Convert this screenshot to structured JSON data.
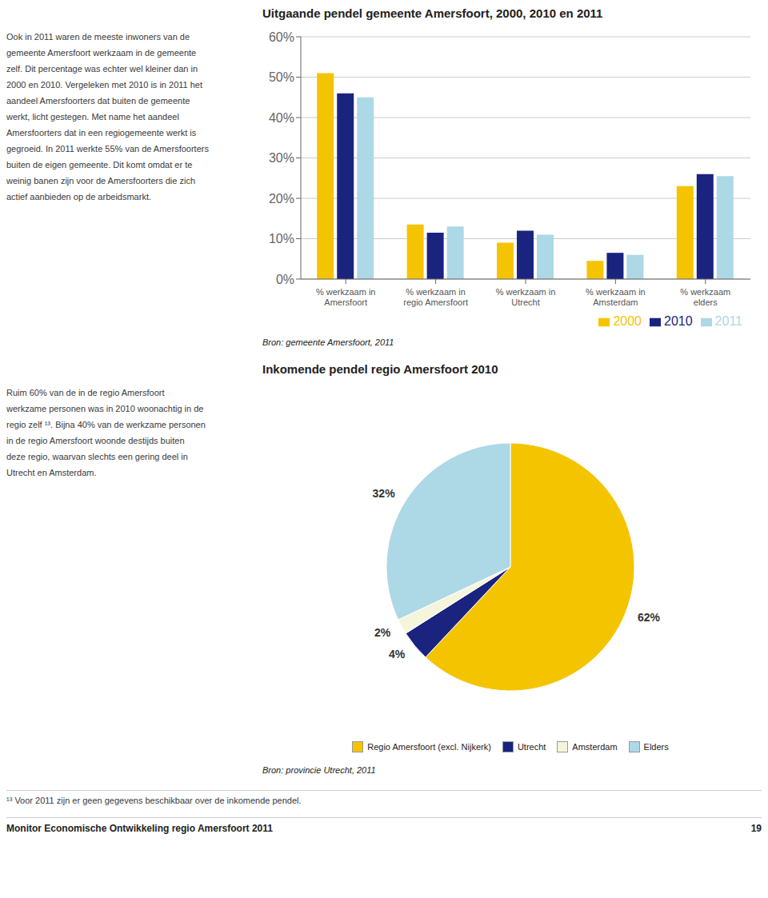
{
  "chart_data": [
    {
      "type": "bar",
      "title": "Uitgaande pendel gemeente Amersfoort, 2000, 2010 en 2011",
      "categories": [
        "% werkzaam in\nAmersfoort",
        "% werkzaam in\nregio Amersfoort",
        "% werkzaam in\nUtrecht",
        "% werkzaam in\nAmsterdam",
        "% werkzaam\nelders"
      ],
      "series": [
        {
          "name": "2000",
          "color": "#F5C400",
          "values": [
            51,
            13.5,
            9,
            4.5,
            23
          ]
        },
        {
          "name": "2010",
          "color": "#1a237e",
          "values": [
            46,
            11.5,
            12,
            6.5,
            26
          ]
        },
        {
          "name": "2011",
          "color": "#add8e6",
          "values": [
            45,
            13,
            11,
            6,
            25.5
          ]
        }
      ],
      "ylim": [
        0,
        60
      ],
      "yticks": [
        {
          "value": 0,
          "label": "0%"
        },
        {
          "value": 10,
          "label": "10%"
        },
        {
          "value": 20,
          "label": "20%"
        },
        {
          "value": 30,
          "label": "30%"
        },
        {
          "value": 40,
          "label": "40%"
        },
        {
          "value": 50,
          "label": "50%"
        },
        {
          "value": 60,
          "label": "60%"
        }
      ],
      "grid": true,
      "legend": "lower right",
      "annotations": [
        "Bron: gemeente Amersfoort, 2011"
      ]
    },
    {
      "type": "pie",
      "title": "Inkomende pendel regio Amersfoort 2010",
      "categories": [
        "Regio Amersfoort (excl. Nijkerk)",
        "Utrecht",
        "Amsterdam",
        "Elders"
      ],
      "values": [
        62,
        4,
        2,
        32
      ],
      "value_labels": [
        "62%",
        "4%",
        "2%",
        "32%"
      ],
      "colors": [
        "#F5C400",
        "#1a237e",
        "#f5f5dc",
        "#add8e6"
      ],
      "data_labels": true,
      "legend": "lower center",
      "annotations": [
        "Bron: provincie Utrecht, 2011"
      ]
    }
  ],
  "annotations": [
    "Ook in 2011 waren de meeste inwoners van de\ngemeente Amersfoort werkzaam in de gemeente\nzelf. Dit percentage was echter wel kleiner dan in\n2000 en 2010. Vergeleken met 2010 is in 2011 het\naandeel Amersfoorters dat buiten de gemeente\nwerkt, licht gestegen. Met name het aandeel\nAmersfoorters dat in een regiogemeente werkt is\ngegroeid. In 2011 werkte 55% van de Amersfoorters\nbuiten de eigen gemeente. Dit komt omdat er te\nweinig banen zijn voor de Amersfoorters die zich\nactief aanbieden op de arbeidsmarkt.",
    "Ruim 60% van de in de regio Amersfoort\nwerkzame personen was in 2010 woonachtig in de\nregio zelf ¹³. Bijna 40% van de werkzame personen\nin de regio Amersfoort woonde destijds buiten\ndeze regio, waarvan slechts een gering deel in\nUtrecht en Amsterdam.",
    "¹³ Voor 2011 zijn er geen gegevens beschikbaar over de inkomende pendel.",
    "Monitor Economische Ontwikkeling regio Amersfoort 2011",
    "19"
  ]
}
